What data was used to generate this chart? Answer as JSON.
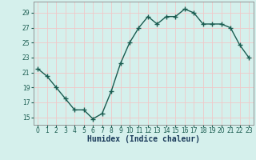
{
  "x": [
    0,
    1,
    2,
    3,
    4,
    5,
    6,
    7,
    8,
    9,
    10,
    11,
    12,
    13,
    14,
    15,
    16,
    17,
    18,
    19,
    20,
    21,
    22,
    23
  ],
  "y": [
    21.5,
    20.5,
    19.0,
    17.5,
    16.0,
    16.0,
    14.8,
    15.5,
    18.5,
    22.2,
    25.0,
    27.0,
    28.5,
    27.5,
    28.5,
    28.5,
    29.5,
    29.0,
    27.5,
    27.5,
    27.5,
    27.0,
    24.7,
    23.0
  ],
  "line_color": "#2d7d6f",
  "marker": "+",
  "marker_size": 4,
  "bg_color": "#d5f0ec",
  "grid_color": "#f0c8c8",
  "xlabel": "Humidex (Indice chaleur)",
  "xlim": [
    -0.5,
    23.5
  ],
  "ylim": [
    14.0,
    30.5
  ],
  "yticks": [
    15,
    17,
    19,
    21,
    23,
    25,
    27,
    29
  ],
  "xticks": [
    0,
    1,
    2,
    3,
    4,
    5,
    6,
    7,
    8,
    9,
    10,
    11,
    12,
    13,
    14,
    15,
    16,
    17,
    18,
    19,
    20,
    21,
    22,
    23
  ],
  "tick_fontsize": 5.5,
  "label_fontsize": 7,
  "linewidth": 1.0,
  "line_dark": "#1a5c50",
  "spine_color": "#888888",
  "xlabel_color": "#1a3a5a"
}
